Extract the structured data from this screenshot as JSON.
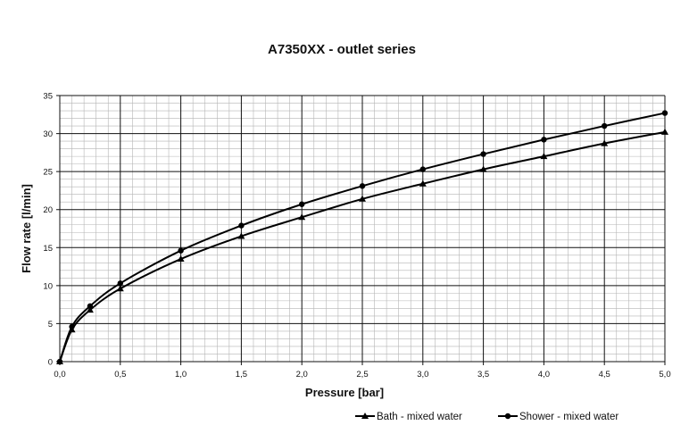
{
  "chart_data": {
    "type": "line",
    "title": "A7350XX - outlet series",
    "xlabel": "Pressure [bar]",
    "ylabel": "Flow rate [l/min]",
    "xlim": [
      0,
      5
    ],
    "ylim": [
      0,
      35
    ],
    "x_ticks": [
      "0,0",
      "0,5",
      "1,0",
      "1,5",
      "2,0",
      "2,5",
      "3,0",
      "3,5",
      "4,0",
      "4,5",
      "5,0"
    ],
    "y_ticks": [
      "0",
      "5",
      "10",
      "15",
      "20",
      "25",
      "30",
      "35"
    ],
    "grid": true,
    "legend_position": "bottom-right",
    "series": [
      {
        "name": "Bath - mixed water",
        "marker": "triangle",
        "color": "#000000",
        "points": [
          [
            0,
            0
          ],
          [
            0.1,
            4.2
          ],
          [
            0.25,
            6.8
          ],
          [
            0.5,
            9.6
          ],
          [
            1.0,
            13.5
          ],
          [
            1.5,
            16.5
          ],
          [
            2.0,
            19.0
          ],
          [
            2.5,
            21.4
          ],
          [
            3.0,
            23.4
          ],
          [
            3.5,
            25.3
          ],
          [
            4.0,
            27.0
          ],
          [
            4.5,
            28.7
          ],
          [
            5.0,
            30.2
          ]
        ]
      },
      {
        "name": "Shower - mixed water",
        "marker": "circle",
        "color": "#000000",
        "points": [
          [
            0,
            0
          ],
          [
            0.1,
            4.6
          ],
          [
            0.25,
            7.3
          ],
          [
            0.5,
            10.3
          ],
          [
            1.0,
            14.6
          ],
          [
            1.5,
            17.9
          ],
          [
            2.0,
            20.7
          ],
          [
            2.5,
            23.1
          ],
          [
            3.0,
            25.3
          ],
          [
            3.5,
            27.3
          ],
          [
            4.0,
            29.2
          ],
          [
            4.5,
            31.0
          ],
          [
            5.0,
            32.7
          ]
        ]
      }
    ]
  }
}
